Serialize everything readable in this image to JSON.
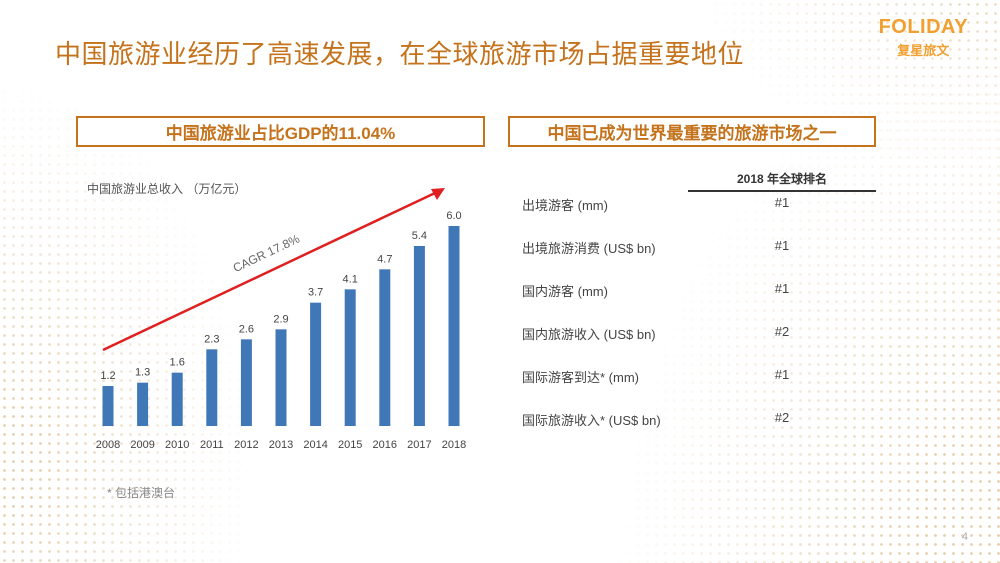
{
  "header": {
    "title": "中国旅游业经历了高速发展，在全球旅游市场占据重要地位",
    "logo_main": "FOLIDAY",
    "logo_sub": "复星旅文"
  },
  "left_panel": {
    "box_title": "中国旅游业占比GDP的11.04%",
    "chart_label": "中国旅游业总收入 （万亿元）",
    "footnote": "* 包括港澳台"
  },
  "right_panel": {
    "box_title": "中国已成为世界最重要的旅游市场之一",
    "rank_header": "2018 年全球排名",
    "rows": [
      {
        "label": "出境游客 (mm)",
        "rank": "#1"
      },
      {
        "label": "出境旅游消费 (US$ bn)",
        "rank": "#1"
      },
      {
        "label": "国内游客 (mm)",
        "rank": "#1"
      },
      {
        "label": "国内旅游收入 (US$ bn)",
        "rank": "#2"
      },
      {
        "label": "国际游客到达* (mm)",
        "rank": "#1"
      },
      {
        "label": "国际旅游收入* (US$ bn)",
        "rank": "#2"
      }
    ]
  },
  "page_number": "4",
  "colors": {
    "accent": "#c4731c",
    "bar": "#3f77b7",
    "arrow": "#e02020",
    "logo": "#f0a030"
  },
  "chart_data": {
    "type": "bar",
    "categories": [
      "2008",
      "2009",
      "2010",
      "2011",
      "2012",
      "2013",
      "2014",
      "2015",
      "2016",
      "2017",
      "2018"
    ],
    "values": [
      1.2,
      1.3,
      1.6,
      2.3,
      2.6,
      2.9,
      3.7,
      4.1,
      4.7,
      5.4,
      6.0
    ],
    "ylabel": "中国旅游业总收入 （万亿元）",
    "ylim": [
      0,
      6.0
    ],
    "grid": false,
    "annotation": "CAGR 17.8%"
  }
}
